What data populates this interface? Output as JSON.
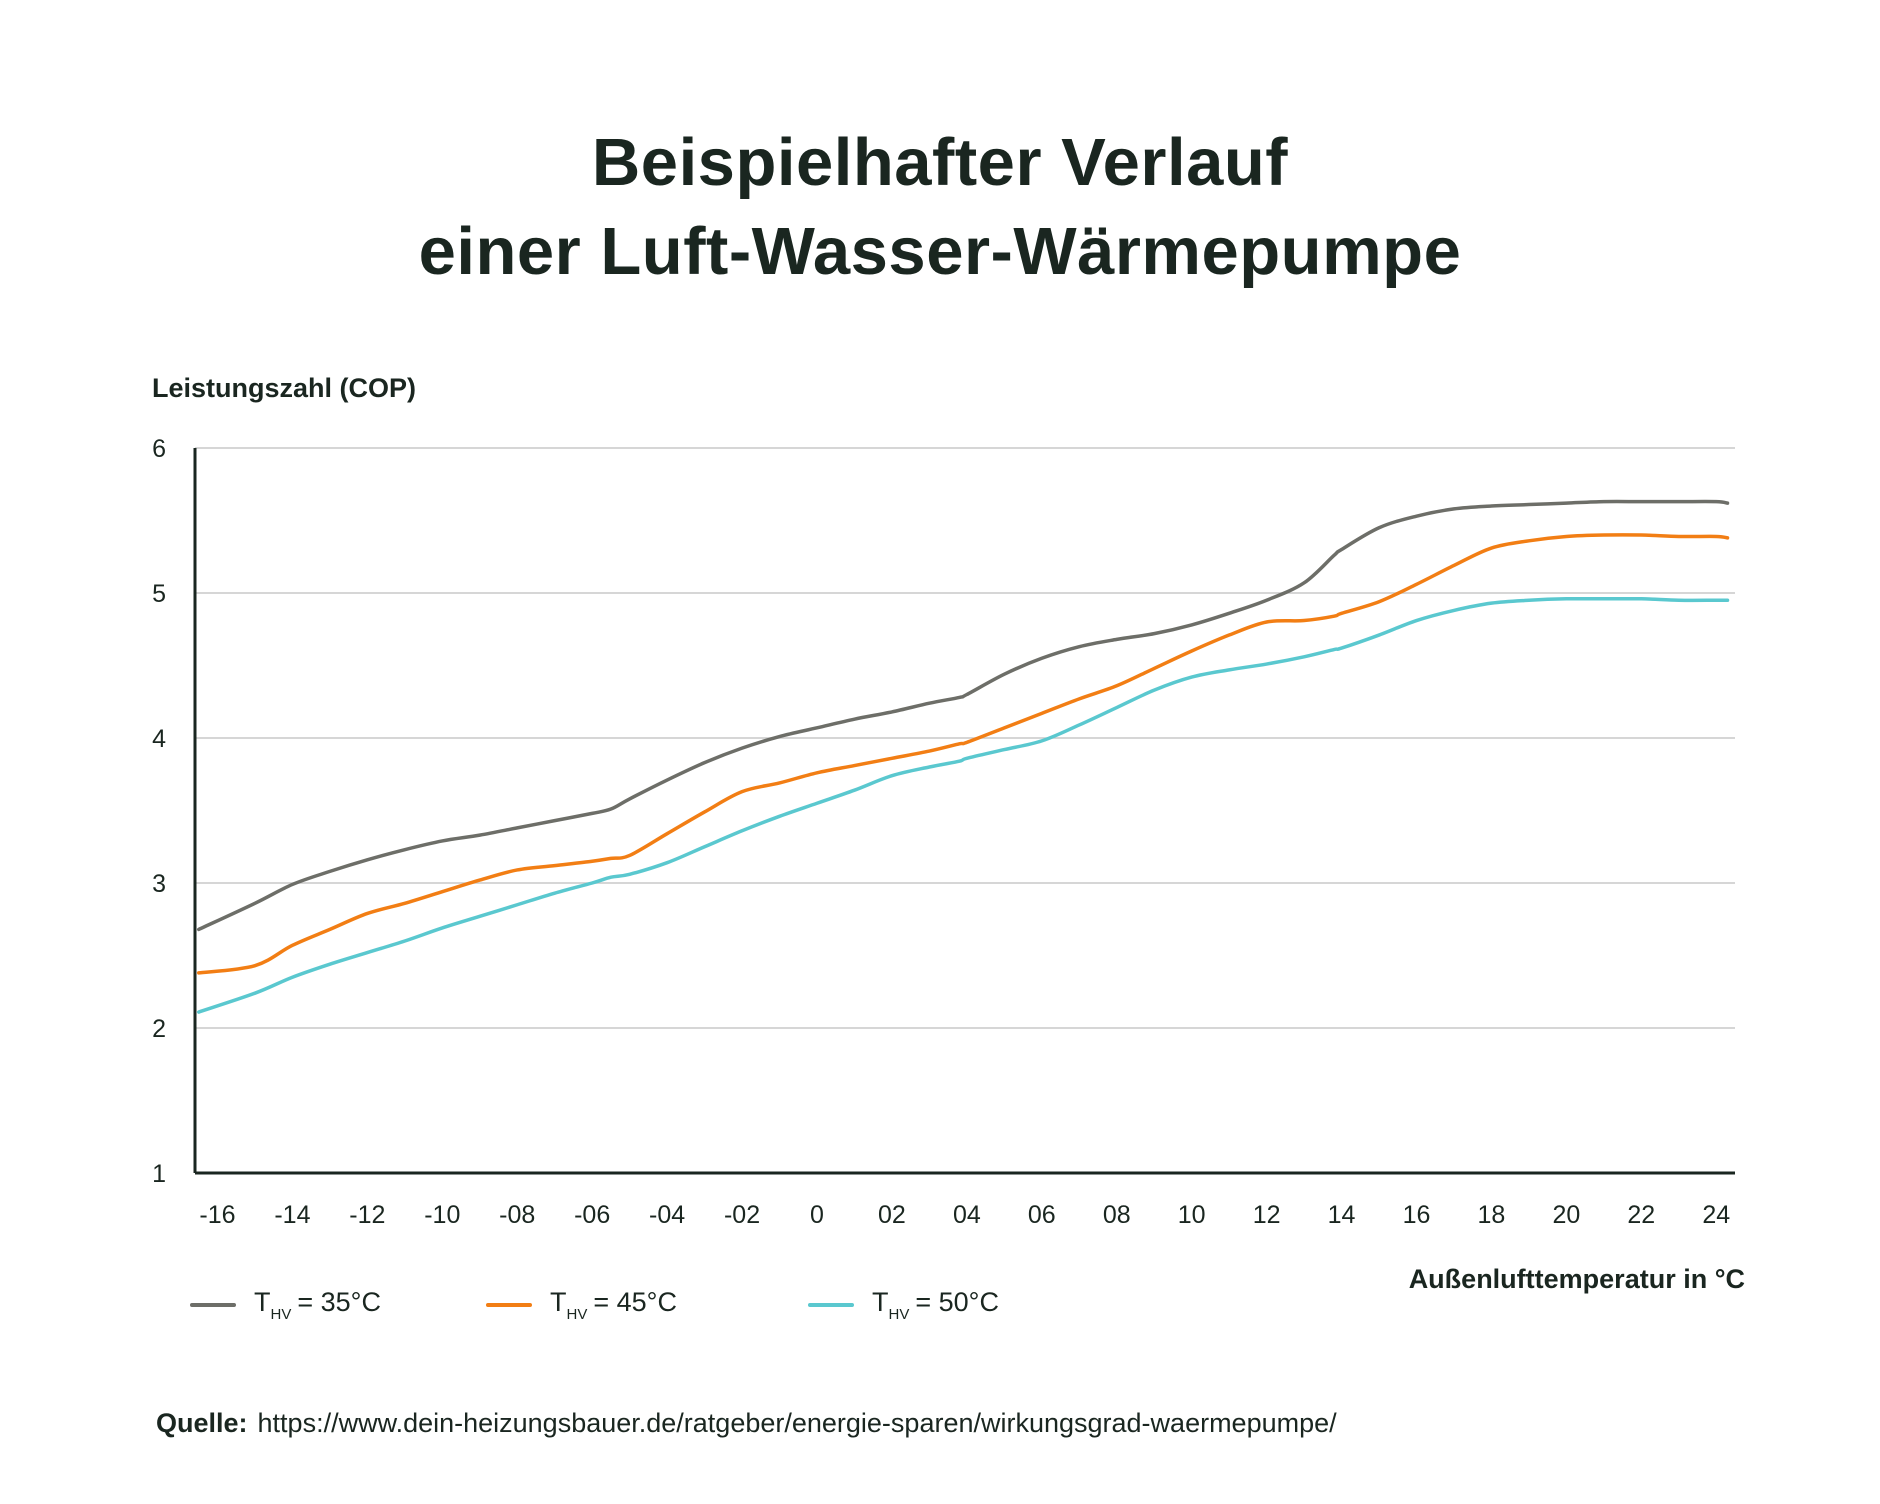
{
  "title": {
    "line1": "Beispielhafter Verlauf",
    "line2": "einer Luft-Wasser-Wärmepumpe"
  },
  "source": {
    "label": "Quelle:",
    "url": "https://www.dein-heizungsbauer.de/ratgeber/energie-sparen/wirkungsgrad-waermepumpe/"
  },
  "legend": [
    {
      "symbol": "T",
      "subscript": "HV",
      "text": "= 35°C",
      "color": "#6d6e68"
    },
    {
      "symbol": "T",
      "subscript": "HV",
      "text": "= 45°C",
      "color": "#f27e14"
    },
    {
      "symbol": "T",
      "subscript": "HV",
      "text": "= 50°C",
      "color": "#5ac8cf"
    }
  ],
  "chart_data": {
    "type": "line",
    "title": "Beispielhafter Verlauf einer Luft-Wasser-Wärmepumpe",
    "xlabel": "Außenlufttemperatur in °C",
    "ylabel": "Leistungszahl (COP)",
    "x_tick_labels": [
      "-16",
      "-14",
      "-12",
      "-10",
      "-08",
      "-06",
      "-04",
      "-02",
      "0",
      "02",
      "04",
      "06",
      "08",
      "10",
      "12",
      "14",
      "16",
      "18",
      "20",
      "22",
      "24"
    ],
    "x_ticks": [
      -16,
      -14,
      -12,
      -10,
      -8,
      -6,
      -4,
      -2,
      0,
      2,
      4,
      6,
      8,
      10,
      12,
      14,
      16,
      18,
      20,
      22,
      24
    ],
    "y_ticks": [
      1,
      2,
      3,
      4,
      5,
      6
    ],
    "xlim": [
      -16.6,
      24.5
    ],
    "ylim": [
      1,
      6
    ],
    "grid": "horizontal",
    "legend_position": "bottom-left",
    "x": [
      -16.5,
      -15,
      -14,
      -13,
      -12,
      -11,
      -10,
      -9,
      -8,
      -7,
      -6,
      -5.5,
      -5,
      -4,
      -3,
      -2,
      -1,
      0,
      1,
      2,
      3,
      3.8,
      4,
      5,
      6,
      7,
      8,
      9,
      10,
      11,
      12,
      13,
      13.8,
      14,
      15,
      16,
      17,
      18,
      19,
      20,
      21,
      22,
      23,
      24,
      24.3
    ],
    "series": [
      {
        "name": "T HV = 35°C",
        "color": "#6d6e68",
        "values": [
          2.68,
          2.86,
          2.99,
          3.08,
          3.16,
          3.23,
          3.29,
          3.33,
          3.38,
          3.43,
          3.48,
          3.51,
          3.58,
          3.71,
          3.83,
          3.93,
          4.01,
          4.07,
          4.13,
          4.18,
          4.24,
          4.28,
          4.3,
          4.44,
          4.55,
          4.63,
          4.68,
          4.72,
          4.78,
          4.86,
          4.95,
          5.07,
          5.26,
          5.3,
          5.45,
          5.53,
          5.58,
          5.6,
          5.61,
          5.62,
          5.63,
          5.63,
          5.63,
          5.63,
          5.62
        ]
      },
      {
        "name": "T HV = 45°C",
        "color": "#f27e14",
        "values": [
          2.38,
          2.43,
          2.57,
          2.68,
          2.79,
          2.86,
          2.94,
          3.02,
          3.09,
          3.12,
          3.15,
          3.17,
          3.19,
          3.34,
          3.49,
          3.63,
          3.69,
          3.76,
          3.81,
          3.86,
          3.91,
          3.96,
          3.97,
          4.07,
          4.17,
          4.27,
          4.36,
          4.48,
          4.6,
          4.71,
          4.8,
          4.81,
          4.84,
          4.86,
          4.94,
          5.06,
          5.19,
          5.31,
          5.36,
          5.39,
          5.4,
          5.4,
          5.39,
          5.39,
          5.38
        ]
      },
      {
        "name": "T HV = 50°C",
        "color": "#5ac8cf",
        "values": [
          2.11,
          2.24,
          2.35,
          2.44,
          2.52,
          2.6,
          2.69,
          2.77,
          2.85,
          2.93,
          3.0,
          3.04,
          3.06,
          3.14,
          3.25,
          3.36,
          3.46,
          3.55,
          3.64,
          3.74,
          3.8,
          3.84,
          3.86,
          3.92,
          3.98,
          4.09,
          4.21,
          4.33,
          4.42,
          4.47,
          4.51,
          4.56,
          4.61,
          4.62,
          4.71,
          4.81,
          4.88,
          4.93,
          4.95,
          4.96,
          4.96,
          4.96,
          4.95,
          4.95,
          4.95
        ]
      }
    ]
  }
}
